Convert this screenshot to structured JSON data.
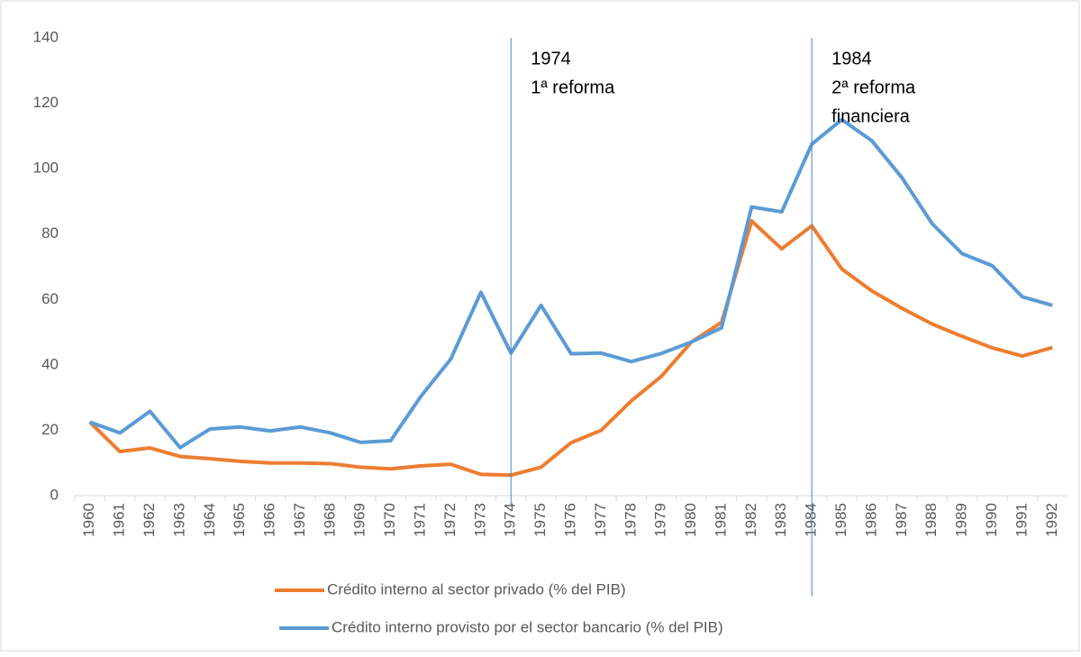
{
  "chart_data": {
    "type": "line",
    "categories": [
      "1960",
      "1961",
      "1962",
      "1963",
      "1964",
      "1965",
      "1966",
      "1967",
      "1968",
      "1969",
      "1970",
      "1971",
      "1972",
      "1973",
      "1974",
      "1975",
      "1976",
      "1977",
      "1978",
      "1979",
      "1980",
      "1981",
      "1982",
      "1983",
      "1984",
      "1985",
      "1986",
      "1987",
      "1988",
      "1989",
      "1990",
      "1991",
      "1992"
    ],
    "series": [
      {
        "name": "Crédito interno al sector privado (% del PIB)",
        "color": "#ed7d31",
        "values": [
          22.5,
          13.5,
          14.6,
          12,
          11.3,
          10.5,
          10,
          10,
          9.8,
          8.7,
          8.2,
          9.1,
          9.6,
          6.5,
          6.3,
          8.7,
          16.2,
          20,
          29,
          36.5,
          47,
          53,
          84,
          75.5,
          82.5,
          69.3,
          62.6,
          57.3,
          52.5,
          48.7,
          45.2,
          42.7,
          45.3
        ]
      },
      {
        "name": "Crédito interno provisto por el sector bancario (% del PIB)",
        "color": "#5b9bd5",
        "values": [
          22.5,
          19.2,
          25.8,
          14.7,
          20.4,
          21,
          19.8,
          21,
          19.2,
          16.3,
          16.8,
          30.3,
          41.8,
          62.2,
          43.6,
          58.2,
          43.4,
          43.6,
          41,
          43.5,
          47,
          51.3,
          88.3,
          86.8,
          107.5,
          115,
          108.5,
          97.2,
          83.2,
          74,
          70.3,
          60.8,
          58.2
        ]
      }
    ],
    "ylim": [
      0,
      140
    ],
    "yticks": [
      0,
      20,
      40,
      60,
      80,
      100,
      120,
      140
    ],
    "grid": false,
    "legend": "bottom",
    "annotations": [
      {
        "x": "1974",
        "lines": [
          "1974",
          "1ª reforma"
        ]
      },
      {
        "x": "1984",
        "lines": [
          "1984",
          "2ª reforma",
          "financiera"
        ]
      }
    ]
  }
}
